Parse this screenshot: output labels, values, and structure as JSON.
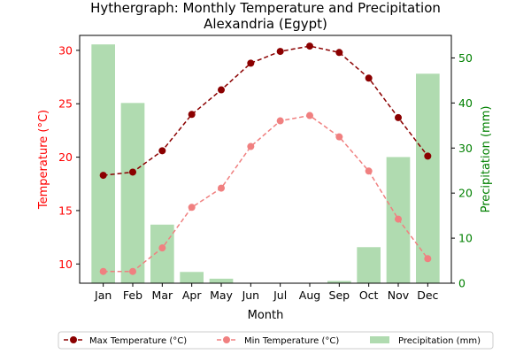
{
  "chart_data": {
    "type": "line+bar",
    "title_line1": "Hythergraph: Monthly Temperature and Precipitation",
    "title_line2": "Alexandria (Egypt)",
    "xlabel": "Month",
    "ylabel_left": "Temperature (°C)",
    "ylabel_right": "Precipitation (mm)",
    "categories": [
      "Jan",
      "Feb",
      "Mar",
      "Apr",
      "May",
      "Jun",
      "Jul",
      "Aug",
      "Sep",
      "Oct",
      "Nov",
      "Dec"
    ],
    "ylim_left": [
      8.2,
      31.4
    ],
    "yticks_left": [
      10,
      15,
      20,
      25,
      30
    ],
    "ylim_right": [
      0,
      55
    ],
    "yticks_right": [
      0,
      10,
      20,
      30,
      40,
      50
    ],
    "series": [
      {
        "name": "Max Temperature (°C)",
        "axis": "left",
        "kind": "line",
        "color": "#8b0000",
        "style": "dashed",
        "marker": "circle",
        "values": [
          18.3,
          18.6,
          20.6,
          24.0,
          26.3,
          28.8,
          29.9,
          30.4,
          29.8,
          27.4,
          23.7,
          20.1
        ]
      },
      {
        "name": "Min Temperature (°C)",
        "axis": "left",
        "kind": "line",
        "color": "#f08080",
        "style": "dashed",
        "marker": "circle",
        "values": [
          9.3,
          9.3,
          11.5,
          15.3,
          17.1,
          21.0,
          23.4,
          23.9,
          21.9,
          18.7,
          14.2,
          10.5
        ]
      },
      {
        "name": "Precipitation (mm)",
        "axis": "right",
        "kind": "bar",
        "color": "#8fcc8f",
        "values": [
          53,
          40,
          13,
          2.5,
          1,
          0,
          0,
          0,
          0.5,
          8,
          28,
          46.5
        ]
      }
    ],
    "legend_position": "bottom-center",
    "grid": false,
    "colors": {
      "left_axis": "#ff0000",
      "right_axis": "#008000"
    }
  }
}
